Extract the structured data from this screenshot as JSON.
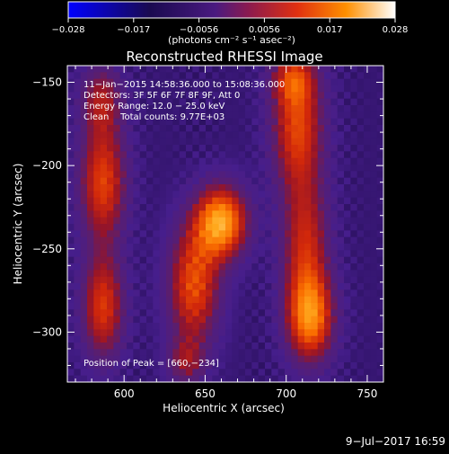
{
  "colorbar": {
    "ticks": [
      "−0.028",
      "−0.017",
      "−0.0056",
      "0.0056",
      "0.017",
      "0.028"
    ],
    "unit_label": "(photons cm⁻² s⁻¹ asec⁻²)"
  },
  "title": "Reconstructed RHESSI Image",
  "annotations": {
    "time": "11−Jan−2015 14:58:36.000 to 15:08:36.000",
    "detectors": "Detectors: 3F 5F 6F 7F 8F 9F, Att 0",
    "energy": "Energy Range: 12.0 − 25.0 keV",
    "clean": "Clean    Total counts: 9.77E+03",
    "peak": "Position of Peak = [660,−234]"
  },
  "footer_date": "9−Jul−2017 16:59",
  "chart_data": {
    "type": "heatmap",
    "title": "Reconstructed RHESSI Image",
    "xlabel": "Heliocentric X (arcsec)",
    "ylabel": "Heliocentric Y (arcsec)",
    "xlim": [
      565,
      760
    ],
    "ylim": [
      -330,
      -140
    ],
    "x_ticks": [
      600,
      650,
      700,
      750
    ],
    "x_tick_labels": [
      "600",
      "650",
      "700",
      "750"
    ],
    "y_ticks": [
      -150,
      -200,
      -250,
      -300
    ],
    "y_tick_labels": [
      "−150",
      "−200",
      "−250",
      "−300"
    ],
    "colorbar_range": [
      -0.028,
      0.028
    ],
    "colormap": [
      "#0000ff",
      "#0000aa",
      "#1a0a40",
      "#4a1a80",
      "#7a2a7a",
      "#b0201a",
      "#e0400a",
      "#ff8000",
      "#ffc040",
      "#ffffff"
    ],
    "peak_position": [
      660,
      -234
    ],
    "sources": [
      {
        "x": 587,
        "y": -210,
        "sx": 10,
        "sy": 25,
        "amp": 0.019
      },
      {
        "x": 587,
        "y": -285,
        "sx": 9,
        "sy": 22,
        "amp": 0.018
      },
      {
        "x": 586,
        "y": -160,
        "sx": 9,
        "sy": 15,
        "amp": 0.012
      },
      {
        "x": 660,
        "y": -234,
        "sx": 11,
        "sy": 15,
        "amp": 0.028
      },
      {
        "x": 643,
        "y": -272,
        "sx": 11,
        "sy": 25,
        "amp": 0.02
      },
      {
        "x": 638,
        "y": -318,
        "sx": 8,
        "sy": 10,
        "amp": 0.01
      },
      {
        "x": 715,
        "y": -292,
        "sx": 10,
        "sy": 18,
        "amp": 0.022
      },
      {
        "x": 712,
        "y": -250,
        "sx": 10,
        "sy": 30,
        "amp": 0.016
      },
      {
        "x": 707,
        "y": -175,
        "sx": 11,
        "sy": 28,
        "amp": 0.019
      },
      {
        "x": 704,
        "y": -148,
        "sx": 9,
        "sy": 10,
        "amp": 0.011
      }
    ],
    "background_value": -0.008
  }
}
